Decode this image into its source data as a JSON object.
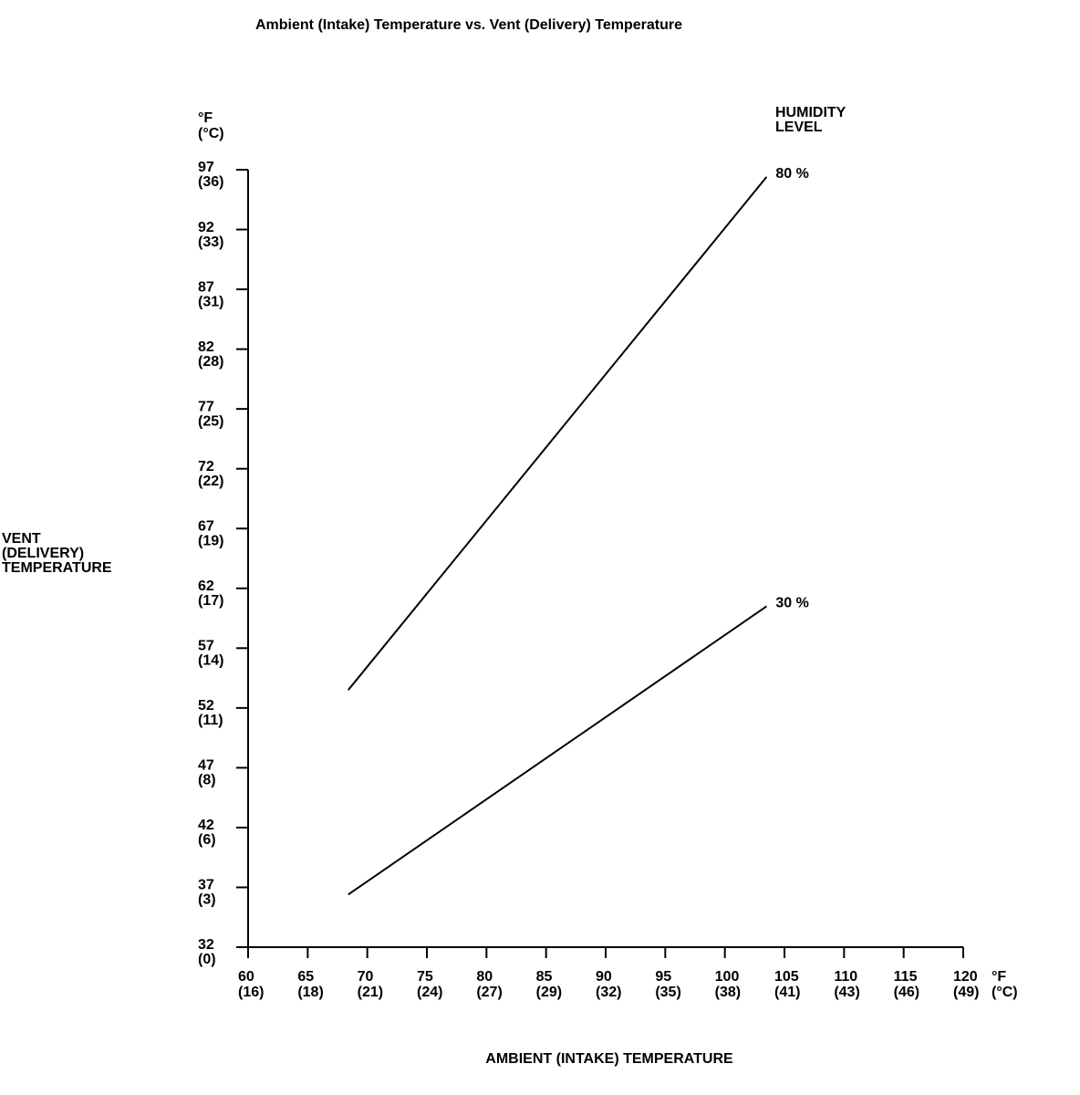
{
  "chart_data": {
    "type": "line",
    "title": "Ambient (Intake) Temperature vs. Vent (Delivery) Temperature",
    "xlabel": "AMBIENT (INTAKE) TEMPERATURE",
    "ylabel": [
      "VENT",
      "(DELIVERY)",
      "TEMPERATURE"
    ],
    "x_unit": [
      "°F",
      "(°C)"
    ],
    "y_unit": [
      "°F",
      "(°C)"
    ],
    "legend_title": [
      "HUMIDITY",
      "LEVEL"
    ],
    "xlim": [
      60,
      120
    ],
    "xticks": [
      60,
      65,
      70,
      75,
      80,
      85,
      90,
      95,
      100,
      105,
      110,
      115,
      120
    ],
    "xticks_celsius": [
      "(16)",
      "(18)",
      "(21)",
      "(24)",
      "(27)",
      "(29)",
      "(32)",
      "(35)",
      "(38)",
      "(41)",
      "(43)",
      "(46)",
      "(49)"
    ],
    "ylim": [
      32,
      97
    ],
    "yticks": [
      32,
      37,
      42,
      47,
      52,
      57,
      62,
      67,
      72,
      77,
      82,
      87,
      92,
      97
    ],
    "yticks_celsius": [
      "(0)",
      "(3)",
      "(6)",
      "(8)",
      "(11)",
      "(14)",
      "(17)",
      "(19)",
      "(22)",
      "(25)",
      "(28)",
      "(31)",
      "(33)",
      "(36)"
    ],
    "color": "#000000",
    "series": [
      {
        "name": "80 %",
        "x": [
          68.4,
          103.5
        ],
        "values": [
          53.5,
          96.4
        ]
      },
      {
        "name": "30 %",
        "x": [
          68.4,
          103.5
        ],
        "values": [
          36.4,
          60.5
        ]
      }
    ]
  }
}
